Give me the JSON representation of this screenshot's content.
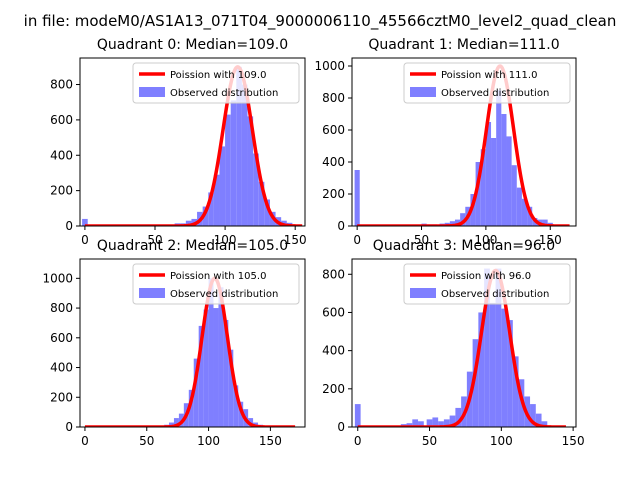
{
  "figure_title": "in file: modeM0/AS1A13_071T04_9000006110_45566cztM0_level2_quad_clean",
  "legend": {
    "model_prefix": "Poission with",
    "observed_label": "Observed distribution"
  },
  "colors": {
    "model": "#ff0000",
    "observed": "#7f7fff",
    "axis": "#000000"
  },
  "chart_data": [
    {
      "type": "bar",
      "title": "Quadrant 0: Median=109.0",
      "median": 109.0,
      "legend_entries": [
        "Poission with 109.0",
        "Observed distribution"
      ],
      "xlim": [
        -3.5,
        157
      ],
      "ylim": [
        0,
        950
      ],
      "xticks": [
        0,
        50,
        100,
        150
      ],
      "yticks": [
        0,
        200,
        400,
        600,
        800
      ],
      "hist": {
        "x": [
          0,
          56,
          60,
          66,
          70,
          74,
          78,
          82,
          86,
          90,
          94,
          98,
          102,
          106,
          110,
          114,
          118,
          122,
          126,
          130,
          134,
          138,
          142,
          146,
          150
        ],
        "values": [
          40,
          4,
          5,
          15,
          15,
          30,
          40,
          80,
          110,
          190,
          290,
          450,
          630,
          710,
          900,
          800,
          620,
          410,
          250,
          150,
          80,
          50,
          30,
          18,
          8
        ],
        "bin_width": 4
      },
      "model": {
        "lambda": 109.0,
        "peak": 900,
        "x_range": [
          0,
          155
        ]
      }
    },
    {
      "type": "bar",
      "title": "Quadrant 1: Median=111.0",
      "median": 111.0,
      "legend_entries": [
        "Poission with 111.0",
        "Observed distribution"
      ],
      "xlim": [
        -4,
        170
      ],
      "ylim": [
        0,
        1050
      ],
      "xticks": [
        0,
        50,
        100,
        150
      ],
      "yticks": [
        0,
        200,
        400,
        600,
        800,
        1000
      ],
      "hist": {
        "x": [
          0,
          52,
          56,
          60,
          66,
          70,
          74,
          78,
          82,
          86,
          90,
          94,
          98,
          102,
          106,
          110,
          114,
          118,
          122,
          126,
          130,
          134,
          138,
          142,
          146,
          150
        ],
        "values": [
          350,
          15,
          10,
          10,
          15,
          20,
          30,
          40,
          80,
          120,
          200,
          400,
          480,
          650,
          550,
          850,
          700,
          560,
          380,
          240,
          170,
          120,
          50,
          40,
          40,
          20
        ],
        "bin_width": 4
      },
      "model": {
        "lambda": 111.0,
        "peak": 1000,
        "x_range": [
          0,
          165
        ]
      }
    },
    {
      "type": "bar",
      "title": "Quadrant 2: Median=105.0",
      "median": 105.0,
      "legend_entries": [
        "Poission with 105.0",
        "Observed distribution"
      ],
      "xlim": [
        -4,
        178
      ],
      "ylim": [
        0,
        1130
      ],
      "xticks": [
        0,
        50,
        100,
        150
      ],
      "yticks": [
        0,
        200,
        400,
        600,
        800,
        1000
      ],
      "hist": {
        "x": [
          66,
          70,
          74,
          78,
          82,
          86,
          90,
          94,
          98,
          102,
          106,
          110,
          114,
          118,
          122,
          126,
          130,
          134,
          138,
          142
        ],
        "values": [
          15,
          30,
          60,
          90,
          160,
          250,
          460,
          680,
          790,
          1000,
          800,
          940,
          720,
          520,
          280,
          170,
          120,
          60,
          30,
          15
        ],
        "bin_width": 4
      },
      "model": {
        "lambda": 105.0,
        "peak": 1000,
        "x_range": [
          0,
          170
        ]
      }
    },
    {
      "type": "bar",
      "title": "Quadrant 3: Median=96.0",
      "median": 96.0,
      "legend_entries": [
        "Poission with 96.0",
        "Observed distribution"
      ],
      "xlim": [
        -4,
        152
      ],
      "ylim": [
        0,
        880
      ],
      "xticks": [
        0,
        50,
        100,
        150
      ],
      "yticks": [
        0,
        200,
        400,
        600,
        800
      ],
      "hist": {
        "x": [
          0,
          32,
          36,
          40,
          44,
          50,
          54,
          58,
          62,
          66,
          70,
          74,
          78,
          82,
          86,
          90,
          94,
          98,
          102,
          106,
          110,
          114,
          118,
          122,
          126,
          130
        ],
        "values": [
          120,
          15,
          20,
          40,
          30,
          40,
          50,
          30,
          40,
          60,
          100,
          160,
          290,
          460,
          600,
          830,
          650,
          830,
          620,
          560,
          370,
          250,
          160,
          120,
          70,
          30
        ],
        "bin_width": 4
      },
      "model": {
        "lambda": 96.0,
        "peak": 820,
        "x_range": [
          0,
          145
        ]
      }
    }
  ]
}
